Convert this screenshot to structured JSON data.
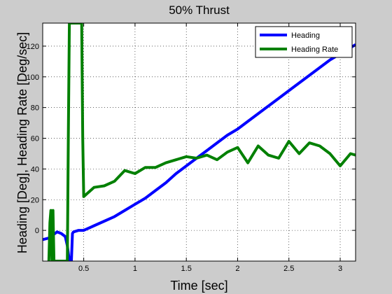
{
  "chart_data": {
    "type": "line",
    "title": "50% Thrust",
    "xlabel": "Time [sec]",
    "ylabel": "Heading [Deg], Heading Rate [Deg/sec]",
    "xlim": [
      0.1,
      3.15
    ],
    "ylim": [
      -20,
      135
    ],
    "xticks": [
      0.5,
      1,
      1.5,
      2,
      2.5,
      3
    ],
    "xtick_labels": [
      "0.5",
      "1",
      "1.5",
      "2",
      "2.5",
      "3"
    ],
    "yticks": [
      0,
      20,
      40,
      60,
      80,
      100,
      120
    ],
    "ytick_labels": [
      "0",
      "20",
      "40",
      "60",
      "80",
      "100",
      "120"
    ],
    "grid": true,
    "legend_position": "top-right",
    "series": [
      {
        "name": "Heading",
        "color": "#0000ff",
        "x": [
          0.1,
          0.16,
          0.2,
          0.24,
          0.28,
          0.32,
          0.34,
          0.36,
          0.38,
          0.39,
          0.4,
          0.45,
          0.5,
          0.6,
          0.7,
          0.8,
          0.9,
          1.0,
          1.1,
          1.2,
          1.3,
          1.4,
          1.5,
          1.6,
          1.7,
          1.8,
          1.9,
          2.0,
          2.1,
          2.2,
          2.3,
          2.4,
          2.5,
          2.6,
          2.7,
          2.8,
          2.9,
          3.0,
          3.1,
          3.15
        ],
        "y": [
          -6,
          -5,
          -3,
          -1,
          -2,
          -4,
          -10,
          -20,
          -20,
          -2,
          -1,
          0,
          0,
          3,
          6,
          9,
          13,
          17,
          21,
          26,
          31,
          37,
          42,
          47,
          52,
          57,
          62,
          66,
          71,
          76,
          81,
          86,
          91,
          96,
          101,
          106,
          111,
          115,
          119,
          121
        ]
      },
      {
        "name": "Heading Rate",
        "color": "#008000",
        "x": [
          0.16,
          0.17,
          0.18,
          0.19,
          0.2,
          0.21,
          0.22,
          0.24,
          0.26,
          0.28,
          0.3,
          0.32,
          0.34,
          0.35,
          0.36,
          0.37,
          0.38,
          0.46,
          0.48,
          0.49,
          0.5,
          0.6,
          0.7,
          0.8,
          0.9,
          1.0,
          1.1,
          1.2,
          1.3,
          1.4,
          1.5,
          1.6,
          1.7,
          1.8,
          1.9,
          2.0,
          2.1,
          2.2,
          2.3,
          2.4,
          2.5,
          2.6,
          2.7,
          2.8,
          2.9,
          3.0,
          3.1,
          3.15
        ],
        "y": [
          -20,
          5,
          13,
          -20,
          13,
          -20,
          -20,
          -20,
          -20,
          -20,
          -20,
          -20,
          -20,
          60,
          135,
          135,
          135,
          135,
          135,
          60,
          22,
          28,
          29,
          32,
          39,
          37,
          41,
          41,
          44,
          46,
          48,
          47,
          49,
          46,
          51,
          54,
          44,
          55,
          49,
          47,
          58,
          50,
          57,
          55,
          50,
          42,
          50,
          49
        ]
      }
    ]
  }
}
